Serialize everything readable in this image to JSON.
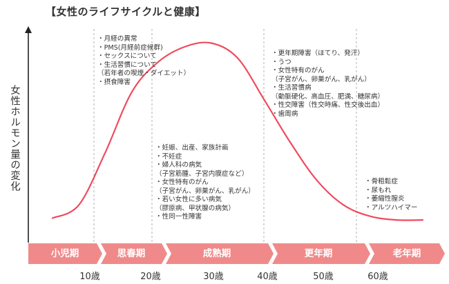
{
  "title": "【女性のライフサイクルと健康】",
  "y_axis_label": "女性ホルモン量の変化",
  "colors": {
    "curve": "#ee4a5e",
    "band": "#f08a8a",
    "axis": "#222222",
    "divider": "#aaaaaa",
    "text": "#333333"
  },
  "stages": [
    "小児期",
    "思春期",
    "成熟期",
    "更年期",
    "老年期"
  ],
  "ages": [
    "10歳",
    "20歳",
    "30歳",
    "40歳",
    "50歳",
    "60歳"
  ],
  "notes": {
    "puberty": [
      "・月経の異常",
      "・PMS(月経前症候群)",
      "・セックスについて",
      "・生活習慣について",
      "（若年者の喫煙・ダイエット）",
      "・摂食障害"
    ],
    "maturity": [
      "・妊娠、出産、家族計画",
      "・不妊症",
      "・婦人科の病気",
      "（子宮筋腫、子宮内膜症など）",
      "・女性特有のがん",
      "（子宮がん、卵巣がん、乳がん）",
      "・若い女性に多い病気",
      "（膠原病、甲状腺の病気）",
      "・性同一性障害"
    ],
    "menopause": [
      "・更年期障害（ほてり、発汗）",
      "・うつ",
      "・女性特有のがん",
      "（子宮がん、卵巣がん、乳がん）",
      "・生活習慣病",
      "（動脈硬化、高血圧、肥満、糖尿病）",
      "・性交障害（性交時痛、性交後出血）",
      "・歯周病"
    ],
    "senescence": [
      "・骨粗鬆症",
      "・尿もれ",
      "・萎縮性膣炎",
      "・アルツハイマー"
    ]
  },
  "chart_data": {
    "type": "line",
    "x_tick_labels": [
      "10歳",
      "20歳",
      "30歳",
      "40歳",
      "50歳",
      "60歳"
    ],
    "categories": [
      "小児期",
      "思春期",
      "成熟期",
      "更年期",
      "老年期"
    ],
    "series": [
      {
        "x": [
          0,
          5,
          10,
          15,
          20,
          25,
          30,
          35,
          40,
          45,
          50,
          55,
          60,
          65,
          70
        ],
        "values": [
          5,
          12,
          40,
          72,
          88,
          96,
          98,
          90,
          68,
          45,
          25,
          12,
          6,
          4,
          4
        ]
      }
    ],
    "xlim": [
      0,
      70
    ],
    "ylim": [
      0,
      100
    ]
  }
}
